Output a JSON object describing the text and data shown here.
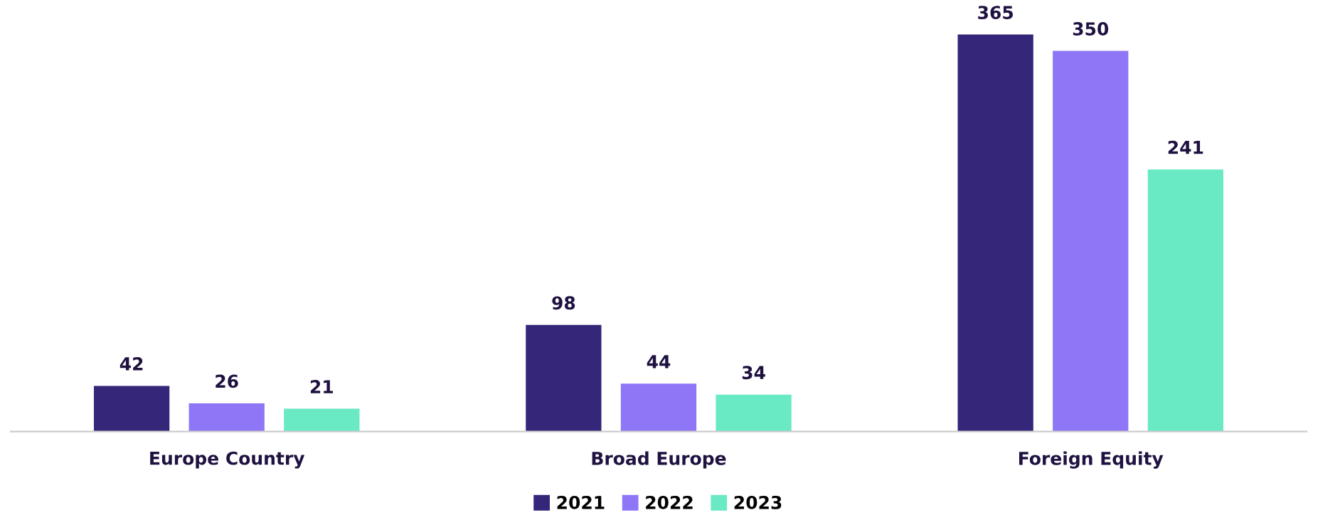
{
  "chart_data": {
    "type": "bar",
    "categories": [
      "Europe Country",
      "Broad Europe",
      "Foreign Equity"
    ],
    "series": [
      {
        "name": "2021",
        "color": "#35267a",
        "values": [
          42,
          98,
          365
        ]
      },
      {
        "name": "2022",
        "color": "#8f76f7",
        "values": [
          26,
          44,
          350
        ]
      },
      {
        "name": "2023",
        "color": "#69e9c4",
        "values": [
          21,
          34,
          241
        ]
      }
    ],
    "data_labels": true,
    "legend": "bottom"
  }
}
